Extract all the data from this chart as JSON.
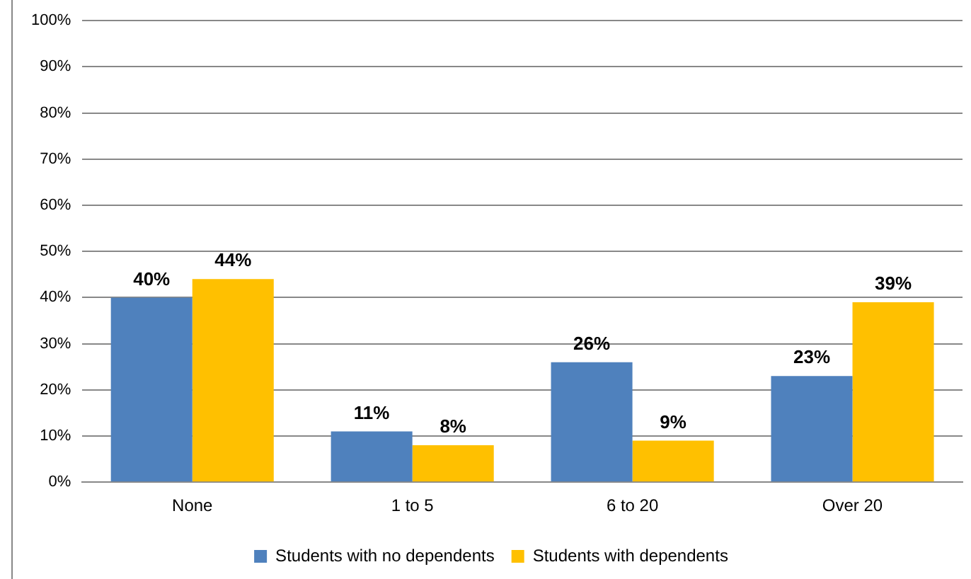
{
  "chart_data": {
    "type": "bar",
    "categories": [
      "None",
      "1 to 5",
      "6 to 20",
      "Over 20"
    ],
    "series": [
      {
        "name": "Students with no dependents",
        "color": "#4f81bd",
        "values": [
          40,
          11,
          26,
          23
        ],
        "value_labels": [
          "40%",
          "11%",
          "26%",
          "23%"
        ]
      },
      {
        "name": "Students with dependents",
        "color": "#ffc000",
        "values": [
          44,
          8,
          9,
          39
        ],
        "value_labels": [
          "44%",
          "8%",
          "9%",
          "39%"
        ]
      }
    ],
    "ylim": [
      0,
      100
    ],
    "yticks": [
      {
        "value": 0,
        "label": "0%"
      },
      {
        "value": 10,
        "label": "10%"
      },
      {
        "value": 20,
        "label": "20%"
      },
      {
        "value": 30,
        "label": "30%"
      },
      {
        "value": 40,
        "label": "40%"
      },
      {
        "value": 50,
        "label": "50%"
      },
      {
        "value": 60,
        "label": "60%"
      },
      {
        "value": 70,
        "label": "70%"
      },
      {
        "value": 80,
        "label": "80%"
      },
      {
        "value": 90,
        "label": "90%"
      },
      {
        "value": 100,
        "label": "100%"
      }
    ],
    "grid": "y",
    "legend": "bottom"
  }
}
